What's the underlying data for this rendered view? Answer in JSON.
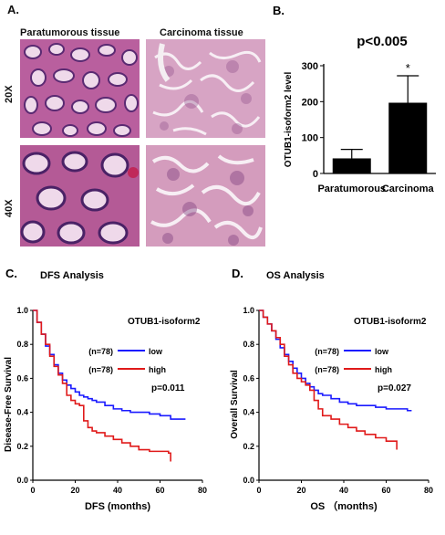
{
  "panelA": {
    "letter": "A.",
    "col_titles": [
      "Paratumorous tissue",
      "Carcinoma tissue"
    ],
    "row_labels": [
      "20X",
      "40X"
    ]
  },
  "chart_data": [
    {
      "panel": "B.",
      "type": "bar",
      "title": "p<0.005",
      "ylabel": "OTUB1-isoform2 level",
      "categories": [
        "Paratumorous",
        "Carcinoma"
      ],
      "values": [
        42,
        197
      ],
      "errors": [
        25,
        75
      ],
      "annotations": [
        "",
        "*"
      ],
      "ylim": [
        0,
        300
      ],
      "yticks": [
        0,
        100,
        200,
        300
      ],
      "bar_color": "#000000"
    },
    {
      "panel": "C.",
      "type": "line",
      "title": "DFS Analysis",
      "xlabel": "DFS (months)",
      "ylabel": "Disease-Free Survival",
      "xlim": [
        0,
        80
      ],
      "ylim": [
        0,
        1.0
      ],
      "xticks": [
        0,
        20,
        40,
        60,
        80
      ],
      "yticks": [
        "0.0",
        "0.2",
        "0.4",
        "0.6",
        "0.8",
        "1.0"
      ],
      "legend_title": "OTUB1-isoform2",
      "pvalue": "p=0.011",
      "series": [
        {
          "name": "low",
          "n": "(n=78)",
          "color": "#1a1aff",
          "x": [
            0,
            2,
            4,
            6,
            8,
            10,
            12,
            14,
            16,
            18,
            20,
            22,
            24,
            26,
            28,
            30,
            34,
            38,
            42,
            46,
            50,
            55,
            60,
            65,
            70,
            72
          ],
          "y": [
            1.0,
            0.93,
            0.86,
            0.79,
            0.74,
            0.68,
            0.63,
            0.59,
            0.56,
            0.54,
            0.52,
            0.5,
            0.49,
            0.48,
            0.47,
            0.46,
            0.44,
            0.42,
            0.41,
            0.4,
            0.4,
            0.39,
            0.38,
            0.36,
            0.36,
            0.36
          ]
        },
        {
          "name": "high",
          "n": "(n=78)",
          "color": "#e01a1a",
          "x": [
            0,
            2,
            4,
            6,
            8,
            10,
            12,
            14,
            16,
            18,
            20,
            22,
            24,
            26,
            28,
            30,
            34,
            38,
            42,
            46,
            50,
            55,
            60,
            64,
            65
          ],
          "y": [
            1.0,
            0.93,
            0.86,
            0.8,
            0.73,
            0.67,
            0.62,
            0.57,
            0.5,
            0.47,
            0.45,
            0.44,
            0.35,
            0.31,
            0.29,
            0.28,
            0.26,
            0.24,
            0.22,
            0.2,
            0.18,
            0.17,
            0.17,
            0.16,
            0.11
          ]
        }
      ]
    },
    {
      "panel": "D.",
      "type": "line",
      "title": "OS  Analysis",
      "xlabel": "OS （months)",
      "ylabel": "Overall Survival",
      "xlim": [
        0,
        80
      ],
      "ylim": [
        0,
        1.0
      ],
      "xticks": [
        0,
        20,
        40,
        60,
        80
      ],
      "yticks": [
        "0.0",
        "0.2",
        "0.4",
        "0.6",
        "0.8",
        "1.0"
      ],
      "legend_title": "OTUB1-isoform2",
      "pvalue": "p=0.027",
      "series": [
        {
          "name": "low",
          "n": "(n=78)",
          "color": "#1a1aff",
          "x": [
            0,
            2,
            4,
            6,
            8,
            10,
            12,
            14,
            16,
            18,
            20,
            22,
            24,
            26,
            28,
            30,
            34,
            38,
            42,
            46,
            50,
            55,
            60,
            65,
            70,
            72
          ],
          "y": [
            1.0,
            0.96,
            0.92,
            0.88,
            0.83,
            0.78,
            0.74,
            0.7,
            0.66,
            0.63,
            0.6,
            0.57,
            0.55,
            0.53,
            0.51,
            0.5,
            0.48,
            0.46,
            0.45,
            0.44,
            0.44,
            0.43,
            0.42,
            0.42,
            0.41,
            0.41
          ]
        },
        {
          "name": "high",
          "n": "(n=78)",
          "color": "#e01a1a",
          "x": [
            0,
            2,
            4,
            6,
            8,
            10,
            12,
            14,
            16,
            18,
            20,
            22,
            24,
            26,
            28,
            30,
            34,
            38,
            42,
            46,
            50,
            55,
            60,
            64,
            65
          ],
          "y": [
            1.0,
            0.96,
            0.92,
            0.88,
            0.84,
            0.8,
            0.73,
            0.68,
            0.63,
            0.6,
            0.58,
            0.56,
            0.53,
            0.47,
            0.42,
            0.38,
            0.36,
            0.33,
            0.31,
            0.29,
            0.27,
            0.25,
            0.23,
            0.23,
            0.18
          ]
        }
      ]
    }
  ]
}
